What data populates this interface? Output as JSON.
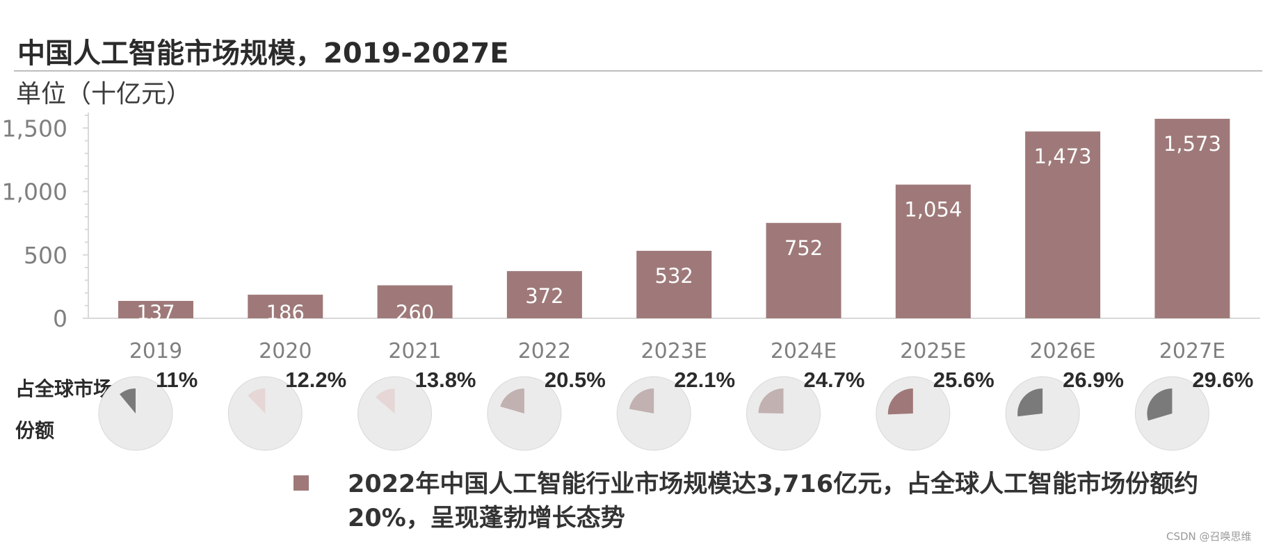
{
  "title": "中国人工智能市场规模，2019-2027E",
  "unit": "单位（十亿元）",
  "share_label": "占全球市场份额",
  "note": "2022年中国人工智能行业市场规模达3,716亿元，占全球人工智能市场份额约20%，呈现蓬勃增长态势",
  "watermark": "CSDN @召唤思维",
  "colors": {
    "bar": "#9f7979",
    "pie_bg": "#ebebeb",
    "axis": "#d9d9d9",
    "tick_text": "#7f7f7f",
    "data_label": "#ffffff"
  },
  "chart_data": {
    "type": "bar",
    "categories": [
      "2019",
      "2020",
      "2021",
      "2022",
      "2023E",
      "2024E",
      "2025E",
      "2026E",
      "2027E"
    ],
    "values": [
      137,
      186,
      260,
      372,
      532,
      752,
      1054,
      1473,
      1573
    ],
    "value_labels": [
      "137",
      "186",
      "260",
      "372",
      "532",
      "752",
      "1,054",
      "1,473",
      "1,573"
    ],
    "yticks": [
      0,
      500,
      1000,
      1500
    ],
    "ytick_labels": [
      "0",
      "500",
      "1,000",
      "1,500"
    ],
    "ylim": [
      0,
      1600
    ],
    "shares": [
      {
        "label": "11%",
        "value": 11,
        "color": "#7a7a7a"
      },
      {
        "label": "12.2%",
        "value": 12.2,
        "color": "#e6d6d6"
      },
      {
        "label": "13.8%",
        "value": 13.8,
        "color": "#e6d6d6"
      },
      {
        "label": "20.5%",
        "value": 20.5,
        "color": "#c2b1b1"
      },
      {
        "label": "22.1%",
        "value": 22.1,
        "color": "#c2b1b1"
      },
      {
        "label": "24.7%",
        "value": 24.7,
        "color": "#c2b1b1"
      },
      {
        "label": "25.6%",
        "value": 25.6,
        "color": "#9f7979"
      },
      {
        "label": "26.9%",
        "value": 26.9,
        "color": "#7a7a7a"
      },
      {
        "label": "29.6%",
        "value": 29.6,
        "color": "#7a7a7a"
      }
    ]
  }
}
